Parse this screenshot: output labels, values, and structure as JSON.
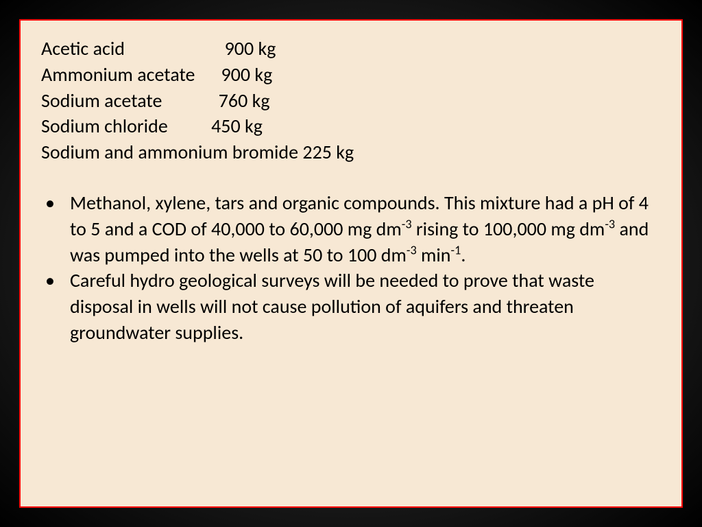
{
  "slide": {
    "background_color": "#f7e8d4",
    "border_color": "#ff0000",
    "text_color": "#000000",
    "font_size_pt": 28,
    "chemicals": [
      {
        "name": "Acetic acid",
        "amount": "900 kg",
        "spacing": "                       "
      },
      {
        "name": "Ammonium acetate",
        "amount": "900 kg",
        "spacing": "      "
      },
      {
        "name": "Sodium acetate",
        "amount": "760 kg",
        "spacing": "             "
      },
      {
        "name": "Sodium chloride",
        "amount": "450 kg",
        "spacing": "          "
      },
      {
        "name": "Sodium and ammonium bromide",
        "amount": "225 kg",
        "spacing": " "
      }
    ],
    "bullets": [
      {
        "html": "Methanol, xylene, tars and organic compounds. This mixture had a pH of 4 to 5 and a COD of 40,000 to 60,000 mg dm<sup>-3</sup> rising to 100,000 mg dm<sup>-3</sup> and was pumped into the wells at 50 to 100 dm<sup>-3</sup> min<sup>-1</sup>."
      },
      {
        "html": "Careful hydro geological surveys will be needed to prove that waste disposal in wells will not cause pollution of aquifers and threaten groundwater supplies."
      }
    ]
  },
  "page_background": {
    "gradient_center": "#4a4a4a",
    "gradient_mid": "#1a1a1a",
    "gradient_edge": "#000000"
  }
}
